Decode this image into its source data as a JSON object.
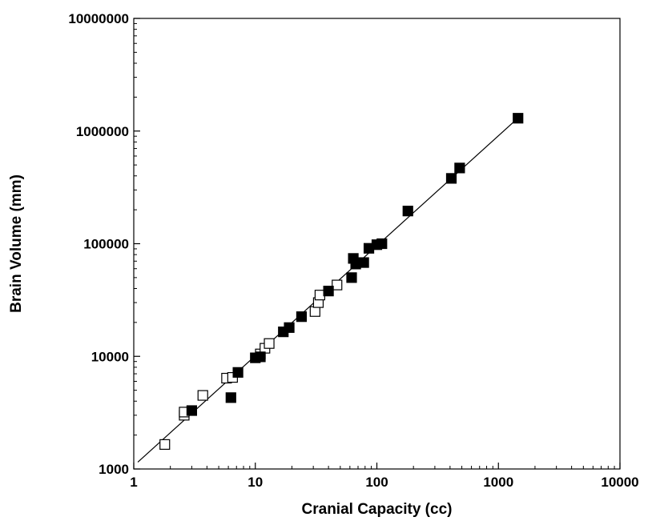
{
  "chart_data": {
    "type": "scatter",
    "title": "",
    "xlabel": "Cranial Capacity (cc)",
    "ylabel": "Brain Volume (mm)",
    "x_scale": "log",
    "y_scale": "log",
    "xlim": [
      1,
      10000
    ],
    "ylim": [
      1000,
      10000000
    ],
    "grid": false,
    "legend": "none",
    "x_ticks": [
      "1",
      "10",
      "100",
      "1000",
      "10000"
    ],
    "y_ticks": [
      "1000",
      "10000",
      "100000",
      "1000000",
      "10000000"
    ],
    "series": [
      {
        "marker": "open-square",
        "color": "#000000",
        "points": [
          {
            "x": 1.8,
            "y": 1650
          },
          {
            "x": 2.6,
            "y": 3000
          },
          {
            "x": 2.6,
            "y": 3200
          },
          {
            "x": 3.7,
            "y": 4500
          },
          {
            "x": 5.8,
            "y": 6400
          },
          {
            "x": 6.5,
            "y": 6500
          },
          {
            "x": 11,
            "y": 10500
          },
          {
            "x": 12,
            "y": 11800
          },
          {
            "x": 13,
            "y": 13000
          },
          {
            "x": 31,
            "y": 25000
          },
          {
            "x": 33,
            "y": 30000
          },
          {
            "x": 34,
            "y": 35000
          },
          {
            "x": 47,
            "y": 43000
          }
        ]
      },
      {
        "marker": "filled-square",
        "color": "#000000",
        "points": [
          {
            "x": 3.0,
            "y": 3300
          },
          {
            "x": 6.3,
            "y": 4300
          },
          {
            "x": 7.2,
            "y": 7200
          },
          {
            "x": 10,
            "y": 9700
          },
          {
            "x": 11,
            "y": 9900
          },
          {
            "x": 17,
            "y": 16500
          },
          {
            "x": 19,
            "y": 18000
          },
          {
            "x": 24,
            "y": 22500
          },
          {
            "x": 40,
            "y": 38000
          },
          {
            "x": 62,
            "y": 50000
          },
          {
            "x": 64,
            "y": 74000
          },
          {
            "x": 67,
            "y": 66000
          },
          {
            "x": 78,
            "y": 68000
          },
          {
            "x": 86,
            "y": 91000
          },
          {
            "x": 100,
            "y": 98000
          },
          {
            "x": 110,
            "y": 100000
          },
          {
            "x": 180,
            "y": 195000
          },
          {
            "x": 410,
            "y": 380000
          },
          {
            "x": 480,
            "y": 470000
          },
          {
            "x": 1450,
            "y": 1300000
          }
        ]
      }
    ],
    "fit_line": {
      "x": [
        1.08,
        1500
      ],
      "y": [
        1150,
        1350000
      ]
    }
  }
}
